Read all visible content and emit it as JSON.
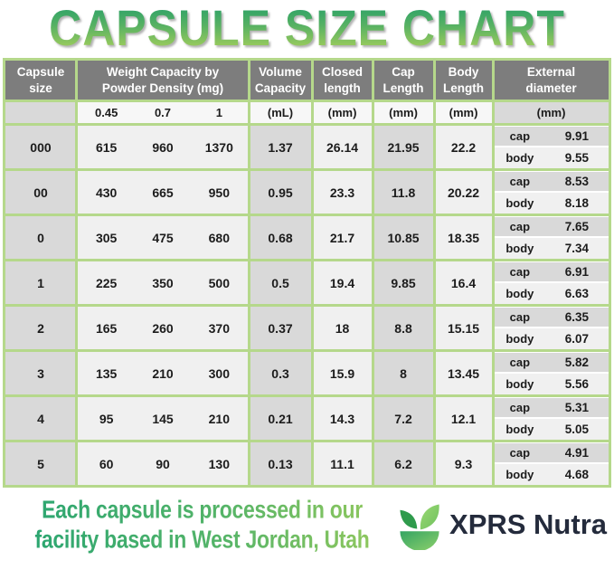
{
  "title": "CAPSULE SIZE CHART",
  "table": {
    "headers": {
      "capsule_size": "Capsule size",
      "weight_capacity": "Weight Capacity by\nPowder Density (mg)",
      "volume_capacity": "Volume\nCapacity",
      "closed_length": "Closed\nlength",
      "cap_length": "Cap\nLength",
      "body_length": "Body\nLength",
      "external_diameter": "External\ndiameter"
    },
    "subheaders": {
      "densities": [
        "0.45",
        "0.7",
        "1"
      ],
      "volume_unit": "(mL)",
      "closed_unit": "(mm)",
      "cap_unit": "(mm)",
      "body_unit": "(mm)",
      "external_unit": "(mm)"
    },
    "row_labels": {
      "cap": "cap",
      "body": "body"
    },
    "rows": [
      {
        "size": "000",
        "weights": [
          "615",
          "960",
          "1370"
        ],
        "volume": "1.37",
        "closed": "26.14",
        "cap_length": "21.95",
        "body_length": "22.2",
        "external_cap": "9.91",
        "external_body": "9.55"
      },
      {
        "size": "00",
        "weights": [
          "430",
          "665",
          "950"
        ],
        "volume": "0.95",
        "closed": "23.3",
        "cap_length": "11.8",
        "body_length": "20.22",
        "external_cap": "8.53",
        "external_body": "8.18"
      },
      {
        "size": "0",
        "weights": [
          "305",
          "475",
          "680"
        ],
        "volume": "0.68",
        "closed": "21.7",
        "cap_length": "10.85",
        "body_length": "18.35",
        "external_cap": "7.65",
        "external_body": "7.34"
      },
      {
        "size": "1",
        "weights": [
          "225",
          "350",
          "500"
        ],
        "volume": "0.5",
        "closed": "19.4",
        "cap_length": "9.85",
        "body_length": "16.4",
        "external_cap": "6.91",
        "external_body": "6.63"
      },
      {
        "size": "2",
        "weights": [
          "165",
          "260",
          "370"
        ],
        "volume": "0.37",
        "closed": "18",
        "cap_length": "8.8",
        "body_length": "15.15",
        "external_cap": "6.35",
        "external_body": "6.07"
      },
      {
        "size": "3",
        "weights": [
          "135",
          "210",
          "300"
        ],
        "volume": "0.3",
        "closed": "15.9",
        "cap_length": "8",
        "body_length": "13.45",
        "external_cap": "5.82",
        "external_body": "5.56"
      },
      {
        "size": "4",
        "weights": [
          "95",
          "145",
          "210"
        ],
        "volume": "0.21",
        "closed": "14.3",
        "cap_length": "7.2",
        "body_length": "12.1",
        "external_cap": "5.31",
        "external_body": "5.05"
      },
      {
        "size": "5",
        "weights": [
          "60",
          "90",
          "130"
        ],
        "volume": "0.13",
        "closed": "11.1",
        "cap_length": "6.2",
        "body_length": "9.3",
        "external_cap": "4.91",
        "external_body": "4.68"
      }
    ]
  },
  "footer": {
    "note_line1": "Each capsule is processed in our",
    "note_line2": "facility based in West Jordan, Utah",
    "brand": "XPRS Nutra",
    "logo": "leaf-bowl-icon"
  },
  "colors": {
    "border_green": "#b5d88b",
    "header_gray": "#7d7d7d",
    "cell_gray": "#d9d9d9",
    "cell_light": "#f0f0f0",
    "title_green_top": "#2fa268",
    "title_green_bottom": "#a6cf5c",
    "footer_green_left": "#27a472",
    "footer_green_right": "#96ca5d",
    "brand_navy": "#242b3c",
    "logo_green_dark": "#35a14f",
    "logo_green_light": "#8ed06b"
  },
  "chart_data": {
    "type": "table",
    "title": "CAPSULE SIZE CHART",
    "columns": [
      "Capsule size",
      "Weight Capacity at Powder Density 0.45 (mg)",
      "Weight Capacity at Powder Density 0.7 (mg)",
      "Weight Capacity at Powder Density 1 (mg)",
      "Volume Capacity (mL)",
      "Closed length (mm)",
      "Cap Length (mm)",
      "Body Length (mm)",
      "External diameter cap (mm)",
      "External diameter body (mm)"
    ],
    "rows": [
      [
        "000",
        615,
        960,
        1370,
        1.37,
        26.14,
        21.95,
        22.2,
        9.91,
        9.55
      ],
      [
        "00",
        430,
        665,
        950,
        0.95,
        23.3,
        11.8,
        20.22,
        8.53,
        8.18
      ],
      [
        "0",
        305,
        475,
        680,
        0.68,
        21.7,
        10.85,
        18.35,
        7.65,
        7.34
      ],
      [
        "1",
        225,
        350,
        500,
        0.5,
        19.4,
        9.85,
        16.4,
        6.91,
        6.63
      ],
      [
        "2",
        165,
        260,
        370,
        0.37,
        18,
        8.8,
        15.15,
        6.35,
        6.07
      ],
      [
        "3",
        135,
        210,
        300,
        0.3,
        15.9,
        8,
        13.45,
        5.82,
        5.56
      ],
      [
        "4",
        95,
        145,
        210,
        0.21,
        14.3,
        7.2,
        12.1,
        5.31,
        5.05
      ],
      [
        "5",
        60,
        90,
        130,
        0.13,
        11.1,
        6.2,
        9.3,
        4.91,
        4.68
      ]
    ]
  }
}
